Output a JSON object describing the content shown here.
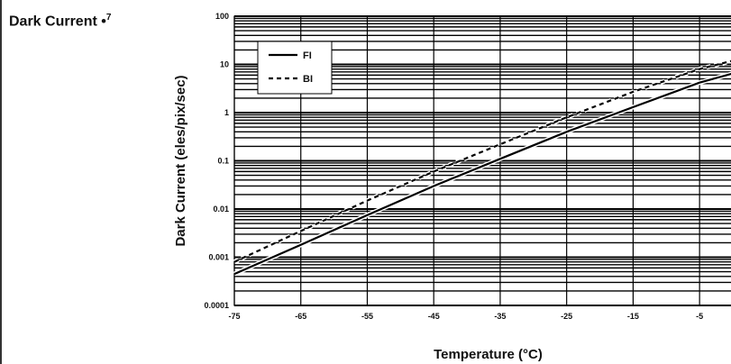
{
  "section_label": {
    "text": "Dark Current",
    "marker": "•",
    "footnote": "7"
  },
  "chart_data": {
    "type": "line",
    "xlabel": "Temperature (°C)",
    "ylabel": "Dark Current (eles/pix/sec)",
    "xlim": [
      -75,
      0
    ],
    "ylim": [
      0.0001,
      100
    ],
    "yscale": "log",
    "grid": true,
    "legend_position": "top-left",
    "x_ticks": [
      "-75",
      "-65",
      "-55",
      "-45",
      "-35",
      "-25",
      "-15",
      "-5"
    ],
    "y_ticks": [
      "0.0001",
      "0.001",
      "0.01",
      "0.1",
      "1",
      "10",
      "100"
    ],
    "series": [
      {
        "name": "FI",
        "style": "solid",
        "color": "#000000",
        "x": [
          -75,
          -65,
          -55,
          -45,
          -35,
          -25,
          -15,
          -5,
          0
        ],
        "y": [
          0.00045,
          0.0018,
          0.0075,
          0.03,
          0.11,
          0.4,
          1.3,
          4.2,
          6.5
        ]
      },
      {
        "name": "BI",
        "style": "dashed",
        "color": "#000000",
        "x": [
          -75,
          -65,
          -55,
          -45,
          -35,
          -25,
          -15,
          -5,
          0
        ],
        "y": [
          0.0008,
          0.0035,
          0.015,
          0.06,
          0.22,
          0.8,
          2.7,
          8,
          12
        ]
      }
    ]
  }
}
